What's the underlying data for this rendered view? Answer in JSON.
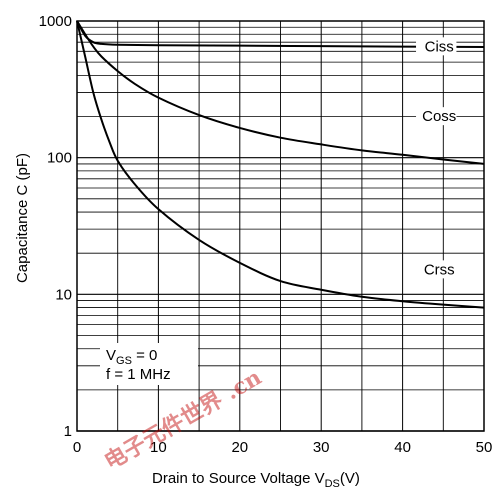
{
  "chart_data": {
    "type": "line",
    "xlabel_main": "Drain to Source Voltage V",
    "xlabel_sub": "DS",
    "xlabel_unit": "(V)",
    "ylabel": "Capacitance C (pF)",
    "xlim": [
      0,
      50
    ],
    "ylim": [
      1,
      1000
    ],
    "yscale": "log",
    "grid": true,
    "x_ticks": [
      "0",
      "10",
      "20",
      "30",
      "40",
      "50"
    ],
    "y_ticks": [
      "1",
      "10",
      "100",
      "1000"
    ],
    "conditions": [
      {
        "main": "V",
        "sub": "GS",
        "rest": " = 0"
      },
      {
        "main": "f = 1 MHz",
        "sub": "",
        "rest": ""
      }
    ],
    "series": [
      {
        "name": "Ciss",
        "x": [
          0,
          1,
          2,
          3,
          5,
          10,
          20,
          30,
          40,
          50
        ],
        "y": [
          1000,
          780,
          700,
          680,
          670,
          665,
          660,
          655,
          650,
          645
        ]
      },
      {
        "name": "Coss",
        "x": [
          0,
          1,
          2,
          3,
          5,
          7,
          10,
          15,
          20,
          25,
          30,
          35,
          40,
          45,
          50
        ],
        "y": [
          1000,
          800,
          650,
          550,
          430,
          350,
          275,
          205,
          165,
          140,
          125,
          113,
          105,
          97,
          90
        ]
      },
      {
        "name": "Crss",
        "x": [
          0,
          1,
          2,
          3,
          4,
          5,
          7,
          10,
          15,
          20,
          25,
          30,
          35,
          40,
          45,
          50
        ],
        "y": [
          1000,
          550,
          300,
          190,
          130,
          95,
          65,
          42,
          25,
          17,
          12.5,
          10.8,
          9.6,
          8.9,
          8.4,
          8.0
        ]
      }
    ]
  },
  "watermark": "电子元件世界 .cn"
}
